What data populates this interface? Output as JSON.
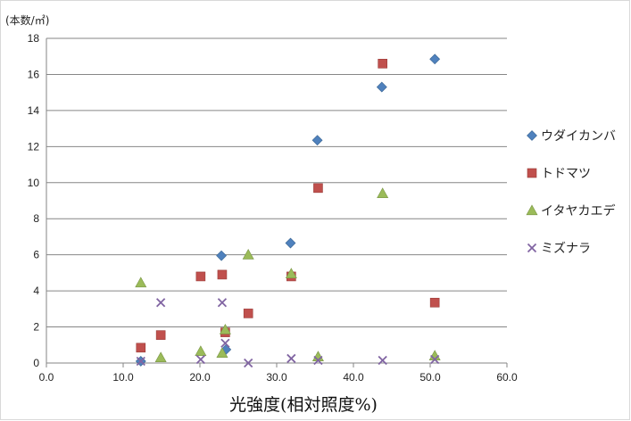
{
  "chart_data": {
    "type": "scatter",
    "title": "",
    "xlabel": "光強度(相対照度%)",
    "ylabel": "(本数/㎡)",
    "xlim": [
      0,
      60
    ],
    "ylim": [
      0,
      18
    ],
    "x_ticks": [
      "0.0",
      "10.0",
      "20.0",
      "30.0",
      "40.0",
      "50.0",
      "60.0"
    ],
    "y_ticks": [
      "0",
      "2",
      "4",
      "6",
      "8",
      "10",
      "12",
      "14",
      "16",
      "18"
    ],
    "grid": "horizontal",
    "legend_position": "right",
    "series": [
      {
        "name": "ウダイカンバ",
        "marker": "diamond",
        "color": "#4f81bd",
        "points": [
          [
            12.3,
            0.1
          ],
          [
            22.8,
            5.95
          ],
          [
            23.4,
            0.75
          ],
          [
            31.8,
            6.65
          ],
          [
            35.3,
            12.35
          ],
          [
            43.7,
            15.3
          ],
          [
            50.6,
            16.85
          ]
        ]
      },
      {
        "name": "トドマツ",
        "marker": "square",
        "color": "#c0504d",
        "points": [
          [
            12.3,
            0.85
          ],
          [
            14.9,
            1.55
          ],
          [
            20.1,
            4.8
          ],
          [
            22.9,
            4.9
          ],
          [
            23.3,
            1.7
          ],
          [
            26.3,
            2.75
          ],
          [
            31.9,
            4.8
          ],
          [
            35.4,
            9.7
          ],
          [
            43.8,
            16.6
          ],
          [
            50.6,
            3.35
          ]
        ]
      },
      {
        "name": "イタヤカエデ",
        "marker": "triangle",
        "color": "#9bbb59",
        "points": [
          [
            12.3,
            4.45
          ],
          [
            14.9,
            0.3
          ],
          [
            20.1,
            0.65
          ],
          [
            22.9,
            0.55
          ],
          [
            23.3,
            1.85
          ],
          [
            26.3,
            6.0
          ],
          [
            31.9,
            4.95
          ],
          [
            35.4,
            0.35
          ],
          [
            43.8,
            9.4
          ],
          [
            50.6,
            0.4
          ]
        ]
      },
      {
        "name": "ミズナラ",
        "marker": "x",
        "color": "#8064a2",
        "points": [
          [
            12.3,
            0.1
          ],
          [
            14.9,
            3.35
          ],
          [
            20.1,
            0.2
          ],
          [
            22.9,
            3.35
          ],
          [
            23.3,
            1.1
          ],
          [
            26.3,
            0.0
          ],
          [
            31.9,
            0.25
          ],
          [
            35.4,
            0.15
          ],
          [
            43.8,
            0.15
          ],
          [
            50.6,
            0.2
          ]
        ]
      }
    ]
  }
}
